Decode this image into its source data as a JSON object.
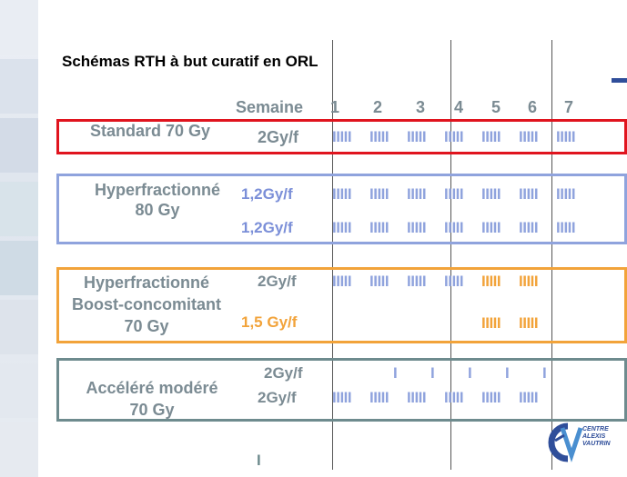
{
  "title": "Schémas RTH à but curatif en ORL",
  "header": {
    "week_label": "Semaine",
    "weeks": [
      "1",
      "2",
      "3",
      "4",
      "5",
      "6",
      "7"
    ]
  },
  "rows": {
    "standard": {
      "name": "Standard 70 Gy",
      "dose": "2Gy/f",
      "ticks": [
        "IIIII",
        "IIIII",
        "IIIII",
        "IIIII",
        "IIIII",
        "IIIII",
        "IIIII"
      ]
    },
    "hyperfractionne": {
      "name_line1": "Hyperfractionné",
      "name_line2": "80 Gy",
      "dose1": "1,2Gy/f",
      "dose2": "1,2Gy/f",
      "ticks1": [
        "IIIII",
        "IIIII",
        "IIIII",
        "IIIII",
        "IIIII",
        "IIIII",
        "IIIII"
      ],
      "ticks2": [
        "IIIII",
        "IIIII",
        "IIIII",
        "IIIII",
        "IIIII",
        "IIIII",
        "IIIII"
      ]
    },
    "boost": {
      "name_line1": "Hyperfractionné",
      "name_line2": "Boost-concomitant",
      "name_line3": "70 Gy",
      "dose1": "2Gy/f",
      "dose2": "1,5 Gy/f",
      "ticks1": [
        "IIIII",
        "IIIII",
        "IIIII",
        "IIIII",
        "IIIII",
        "IIIII"
      ],
      "ticks2": [
        "IIIII",
        "IIIII"
      ]
    },
    "accelere": {
      "name_line1": "Accéléré modéré",
      "name_line2": "70 Gy",
      "dose1": "2Gy/f",
      "dose2": "2Gy/f",
      "ticks1": [
        "I",
        "I",
        "I",
        "I",
        "I"
      ],
      "ticks2": [
        "IIIII",
        "IIIII",
        "IIIII",
        "IIIII",
        "IIIII",
        "IIIII"
      ]
    }
  },
  "footer_mark": "I",
  "logo": {
    "line1": "CENTRE",
    "line2": "ALEXIS",
    "line3": "VAUTRIN"
  },
  "colors": {
    "standard": "#e0141e",
    "hyperfractionne": "#8fa3dd",
    "boost": "#f2a33a",
    "accelere": "#6e8b8e"
  }
}
